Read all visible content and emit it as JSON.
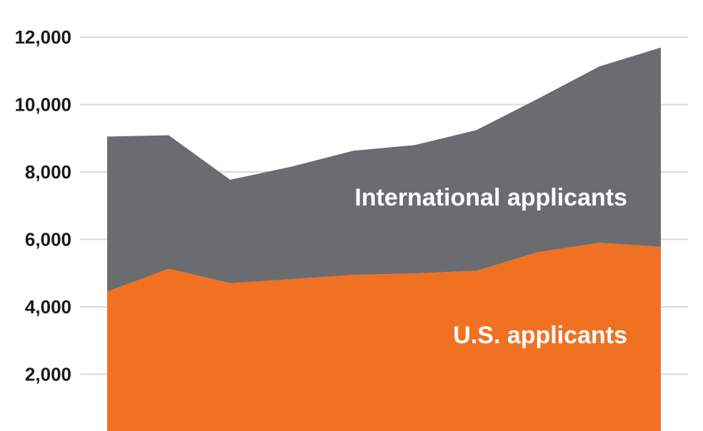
{
  "chart_data": {
    "type": "area",
    "stacked": true,
    "x": [
      1,
      2,
      3,
      4,
      5,
      6,
      7,
      8,
      9,
      10
    ],
    "series": [
      {
        "name": "U.S. applicants",
        "color": "#f07122",
        "values": [
          4450,
          5130,
          4700,
          4820,
          4950,
          4990,
          5070,
          5620,
          5900,
          5780
        ]
      },
      {
        "name": "International applicants",
        "color": "#6b6c6f",
        "values": [
          4600,
          3960,
          3070,
          3340,
          3680,
          3810,
          4170,
          4550,
          5230,
          5910
        ]
      }
    ],
    "y_ticks": [
      2000,
      4000,
      6000,
      8000,
      10000,
      12000
    ],
    "y_tick_labels": [
      "2,000",
      "4,000",
      "6,000",
      "8,000",
      "10,000",
      "12,000"
    ],
    "ylim": [
      0,
      12000
    ],
    "grid": "horizontal",
    "grid_color": "#d9d9d9",
    "legend": "inline labels"
  }
}
